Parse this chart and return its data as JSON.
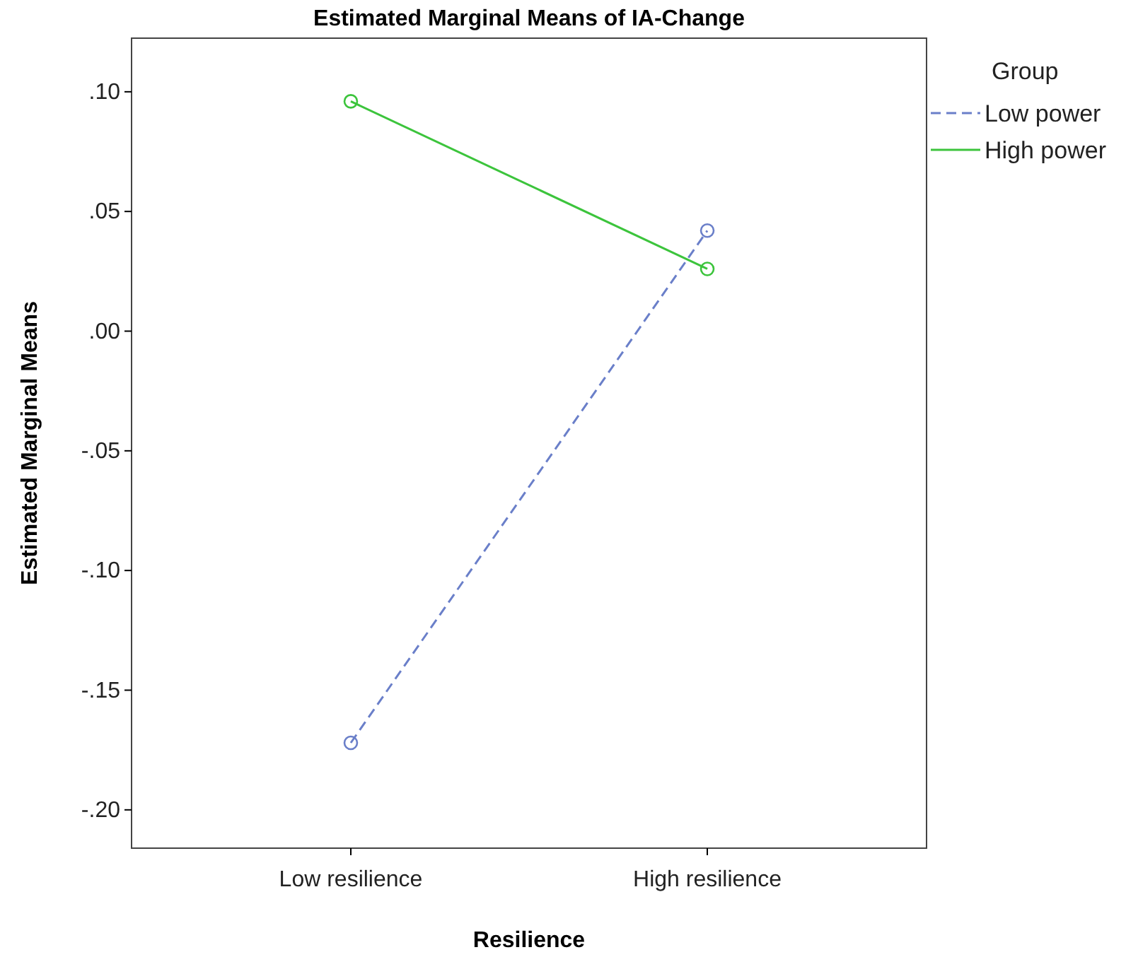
{
  "chart_data": {
    "type": "line",
    "title": "Estimated Marginal Means of IA-Change",
    "xlabel": "Resilience",
    "ylabel": "Estimated Marginal Means",
    "legend_title": "Group",
    "categories": [
      "Low resilience",
      "High resilience"
    ],
    "series": [
      {
        "name": "Low power",
        "color": "#6a7fc9",
        "values": [
          -0.172,
          0.042
        ],
        "line_style": "dashed"
      },
      {
        "name": "High power",
        "color": "#3cc43c",
        "values": [
          0.096,
          0.026
        ],
        "line_style": "solid"
      }
    ],
    "ylim": [
      -0.216,
      0.1224
    ],
    "yticks": [
      {
        "value": 0.1,
        "label": ".10"
      },
      {
        "value": 0.05,
        "label": ".05"
      },
      {
        "value": 0,
        "label": ".00"
      },
      {
        "value": -0.05,
        "label": "-.05"
      },
      {
        "value": -0.1,
        "label": "-.10"
      },
      {
        "value": -0.15,
        "label": "-.15"
      },
      {
        "value": -0.2,
        "label": "-.20"
      }
    ],
    "marker": "circle",
    "legend": "top right",
    "grid": false
  }
}
